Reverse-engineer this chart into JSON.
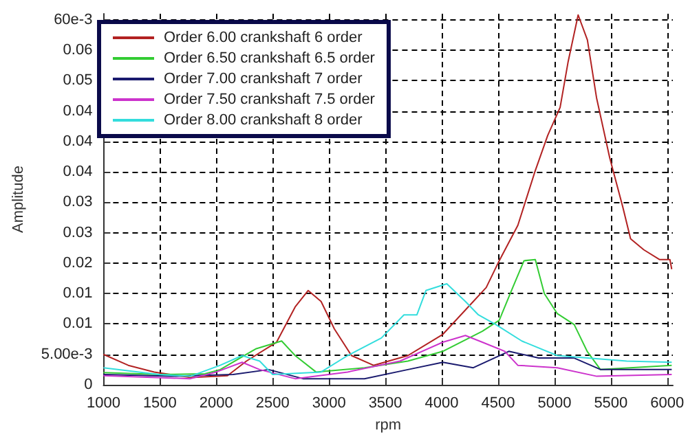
{
  "chart_data": {
    "type": "line",
    "xlabel": "rpm",
    "ylabel": "Amplitude",
    "xlim": [
      1000,
      6050
    ],
    "xticks": [
      1000,
      1500,
      2000,
      2500,
      3000,
      3500,
      4000,
      4500,
      5000,
      5500,
      6000
    ],
    "ylim": [
      0,
      0.061
    ],
    "yticks": [
      0,
      {
        "value": 0.005,
        "label": "5.00e-3"
      },
      {
        "value": 0.01,
        "label": "0.01"
      },
      {
        "value": 0.015,
        "label": "0.01"
      },
      {
        "value": 0.02,
        "label": "0.02"
      },
      {
        "value": 0.025,
        "label": "0.03"
      },
      {
        "value": 0.03,
        "label": "0.03"
      },
      {
        "value": 0.035,
        "label": "0.04"
      },
      {
        "value": 0.04,
        "label": "0.04"
      },
      {
        "value": 0.045,
        "label": "0.04"
      },
      {
        "value": 0.05,
        "label": "0.05"
      },
      {
        "value": 0.055,
        "label": "0.06"
      },
      {
        "value": 0.06,
        "label": "60e-3"
      }
    ],
    "grid": true,
    "legend": "top left",
    "marker": "none",
    "line_style": "solid",
    "series": [
      {
        "name": "Order 6.00 crankshaft 6 order",
        "color": "#b22222",
        "x": [
          1000,
          1220,
          1450,
          1770,
          2100,
          2268,
          2535,
          2700,
          2815,
          2930,
          3047,
          3200,
          3395,
          3700,
          4010,
          4280,
          4395,
          4510,
          4675,
          4826,
          4940,
          5050,
          5120,
          5210,
          5292,
          5373,
          5490,
          5605,
          5675,
          5792,
          5931,
          6024,
          6040
        ],
        "values": [
          0.005,
          0.0032,
          0.0021,
          0.0012,
          0.0015,
          0.0039,
          0.007,
          0.0128,
          0.0155,
          0.0137,
          0.0092,
          0.0048,
          0.0032,
          0.0048,
          0.0083,
          0.0137,
          0.016,
          0.0204,
          0.0262,
          0.035,
          0.041,
          0.0456,
          0.053,
          0.0608,
          0.0567,
          0.0472,
          0.0373,
          0.0293,
          0.024,
          0.0222,
          0.0206,
          0.0206,
          0.019
        ]
      },
      {
        "name": "Order 6.50 crankshaft 6.5 order",
        "color": "#33cc33",
        "x": [
          1000,
          1500,
          1900,
          2035,
          2350,
          2580,
          2700,
          2885,
          3315,
          3700,
          4010,
          4360,
          4510,
          4630,
          4730,
          4830,
          4910,
          5025,
          5175,
          5290,
          5408,
          6040
        ],
        "values": [
          0.002,
          0.0017,
          0.0018,
          0.0025,
          0.0059,
          0.0072,
          0.0048,
          0.0021,
          0.0028,
          0.0039,
          0.0055,
          0.0088,
          0.0106,
          0.016,
          0.0204,
          0.0206,
          0.015,
          0.0117,
          0.0099,
          0.0055,
          0.0025,
          0.0032
        ]
      },
      {
        "name": "Order 7.00 crankshaft 7 order",
        "color": "#1a1a6e",
        "x": [
          1000,
          1600,
          2150,
          2465,
          2770,
          3315,
          3700,
          4010,
          4280,
          4595,
          4860,
          5175,
          5410,
          6040
        ],
        "values": [
          0.0017,
          0.0014,
          0.0017,
          0.0025,
          0.001,
          0.001,
          0.0025,
          0.0037,
          0.0028,
          0.0055,
          0.0044,
          0.0044,
          0.0025,
          0.0025
        ]
      },
      {
        "name": "Order 7.50 crankshaft 7.5 order",
        "color": "#cc33cc",
        "x": [
          1000,
          1770,
          2000,
          2230,
          2385,
          2700,
          3165,
          3630,
          4010,
          4210,
          4360,
          4560,
          4675,
          5025,
          5375,
          6040
        ],
        "values": [
          0.0015,
          0.001,
          0.0021,
          0.0037,
          0.0025,
          0.001,
          0.0021,
          0.0039,
          0.007,
          0.0081,
          0.007,
          0.0055,
          0.0032,
          0.0028,
          0.0014,
          0.0017
        ]
      },
      {
        "name": "Order 8.00 crankshaft 8 order",
        "color": "#33dddd",
        "x": [
          1000,
          1490,
          1770,
          2035,
          2230,
          2385,
          2500,
          2930,
          3165,
          3465,
          3665,
          3780,
          3860,
          4045,
          4210,
          4325,
          4480,
          4710,
          5025,
          5640,
          6040
        ],
        "values": [
          0.0028,
          0.0017,
          0.0014,
          0.0032,
          0.0048,
          0.0039,
          0.0017,
          0.0021,
          0.0048,
          0.0077,
          0.0115,
          0.0115,
          0.0155,
          0.0166,
          0.0137,
          0.0115,
          0.0099,
          0.0072,
          0.0048,
          0.0039,
          0.0037
        ]
      }
    ]
  }
}
